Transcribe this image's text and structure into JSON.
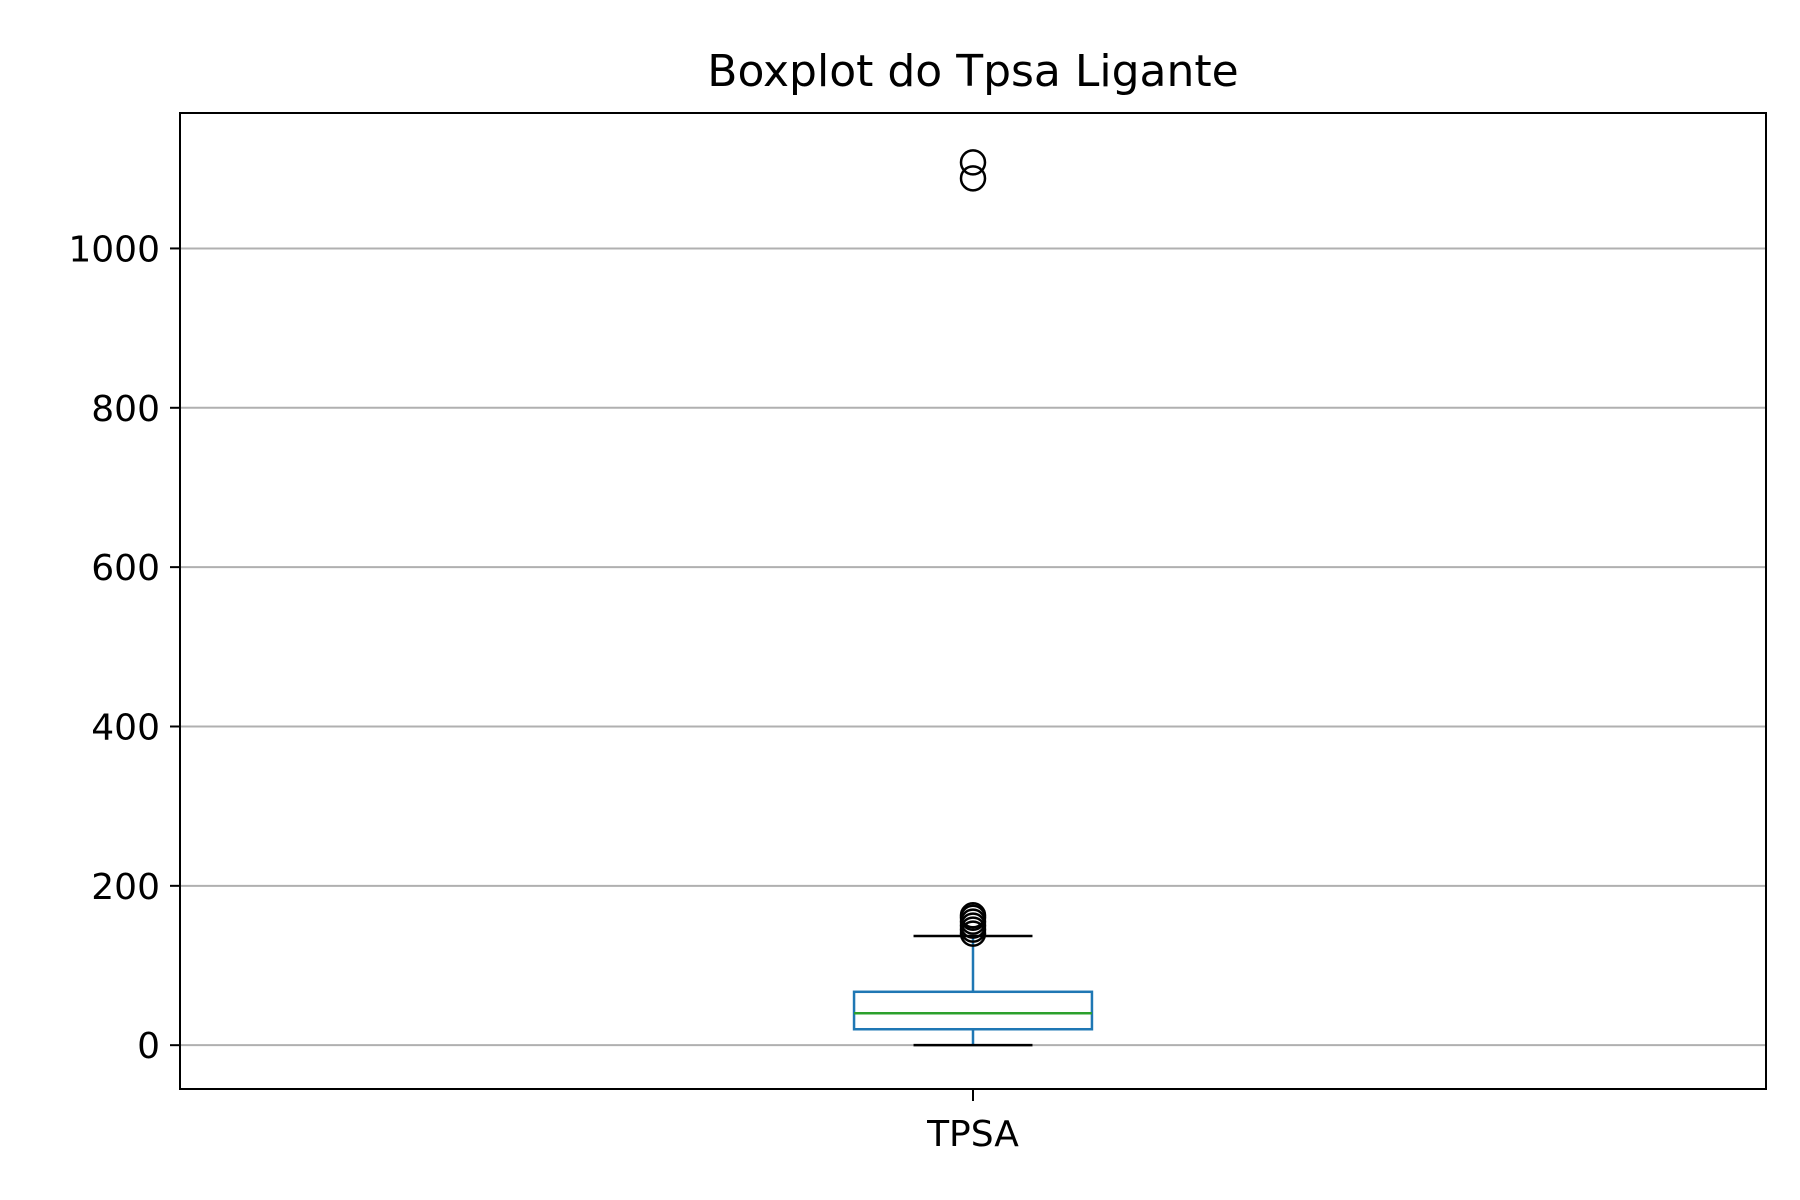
{
  "chart_data": {
    "type": "box",
    "title": "Boxplot do Tpsa Ligante",
    "xlabel": "",
    "ylabel": "",
    "categories": [
      "TPSA"
    ],
    "ylim": [
      -55,
      1170
    ],
    "yticks": [
      0,
      200,
      400,
      600,
      800,
      1000
    ],
    "grid": "horizontal",
    "boxes": [
      {
        "category": "TPSA",
        "whisker_low": 0,
        "q1": 20,
        "median": 40,
        "q3": 67,
        "whisker_high": 137,
        "outliers": [
          140,
          145,
          150,
          155,
          160,
          163,
          1088,
          1108
        ]
      }
    ],
    "colors": {
      "box": "#1f77b4",
      "median": "#2ca02c",
      "whisker_cap": "#000000",
      "grid": "#b0b0b0",
      "axes": "#000000"
    }
  }
}
